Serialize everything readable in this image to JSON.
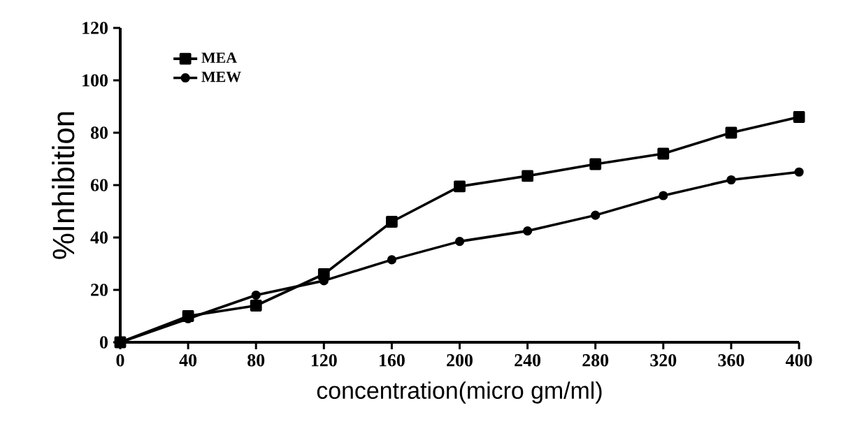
{
  "chart_data": {
    "type": "line",
    "xlabel": "concentration(micro gm/ml)",
    "ylabel": "%Inhibition",
    "x": [
      0,
      40,
      80,
      120,
      160,
      200,
      240,
      280,
      320,
      360,
      400
    ],
    "series": [
      {
        "name": "MEA",
        "color": "#000000",
        "marker": "square",
        "values": [
          0,
          10,
          14,
          26,
          46,
          59.5,
          63.5,
          68,
          72,
          80,
          86
        ]
      },
      {
        "name": "MEW",
        "color": "#000000",
        "marker": "circle",
        "values": [
          0,
          9,
          18,
          23.5,
          31.5,
          38.5,
          42.5,
          48.5,
          56,
          62,
          65
        ]
      }
    ],
    "xlim": [
      0,
      400
    ],
    "xticks": [
      0,
      40,
      80,
      120,
      160,
      200,
      240,
      280,
      320,
      360,
      400
    ],
    "ylim": [
      0,
      120
    ],
    "yticks": [
      0,
      20,
      40,
      60,
      80,
      100,
      120
    ],
    "grid": false,
    "legend": "top left",
    "line_style": "solid"
  }
}
